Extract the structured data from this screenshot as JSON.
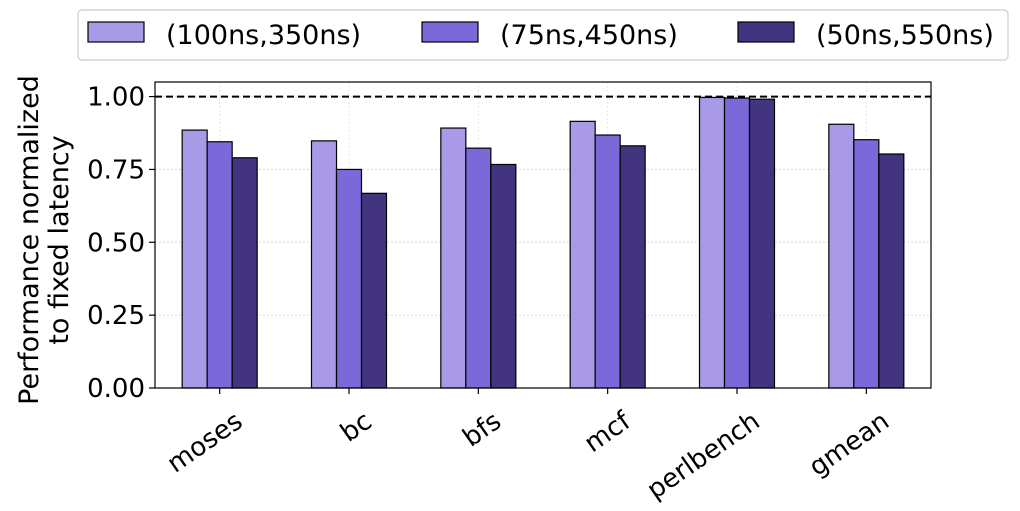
{
  "chart_data": {
    "type": "bar",
    "ylabel": [
      "Performance normalized",
      "to fixed latency"
    ],
    "categories": [
      "moses",
      "bc",
      "bfs",
      "mcf",
      "perlbench",
      "gmean"
    ],
    "series": [
      {
        "name": "(100ns,350ns)",
        "color": "#a89ae6",
        "values": [
          0.885,
          0.848,
          0.892,
          0.915,
          0.997,
          0.905
        ]
      },
      {
        "name": "(75ns,450ns)",
        "color": "#7b68d9",
        "values": [
          0.845,
          0.75,
          0.823,
          0.868,
          0.995,
          0.852
        ]
      },
      {
        "name": "(50ns,550ns)",
        "color": "#42347f",
        "values": [
          0.79,
          0.668,
          0.767,
          0.831,
          0.991,
          0.803
        ]
      }
    ],
    "ylim": [
      0,
      1.05
    ],
    "yticks": [
      "0.00",
      "0.25",
      "0.50",
      "0.75",
      "1.00"
    ],
    "reference_line": 1.0,
    "grid": true,
    "legend_position": "top"
  }
}
